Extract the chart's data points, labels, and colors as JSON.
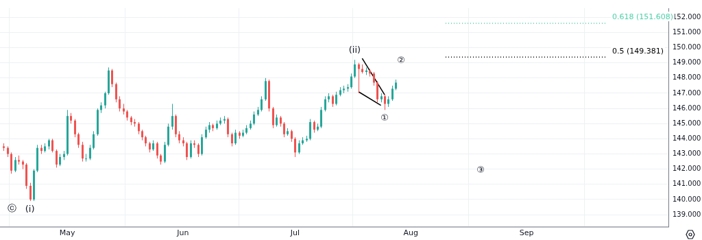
{
  "chart_data": {
    "type": "candlestick",
    "x": [
      "--04-14",
      "--04-15",
      "--04-16",
      "--04-17",
      "--04-18",
      "--04-19",
      "--04-20",
      "--04-21",
      "--04-22",
      "--04-23",
      "--04-24",
      "--04-25",
      "--04-26",
      "--04-27",
      "--04-28",
      "--04-29",
      "--04-30",
      "--05-01",
      "--05-02",
      "--05-03",
      "--05-04",
      "--05-05",
      "--05-06",
      "--05-07",
      "--05-08",
      "--05-09",
      "--05-10",
      "--05-11",
      "--05-12",
      "--05-13",
      "--05-14",
      "--05-15",
      "--05-16",
      "--05-17",
      "--05-18",
      "--05-19",
      "--05-20",
      "--05-21",
      "--05-22",
      "--05-23",
      "--05-24",
      "--05-25",
      "--05-26",
      "--05-27",
      "--05-28",
      "--05-29",
      "--05-30",
      "--05-31",
      "--06-01",
      "--06-02",
      "--06-03",
      "--06-04",
      "--06-05",
      "--06-06",
      "--06-07",
      "--06-08",
      "--06-09",
      "--06-10",
      "--06-11",
      "--06-12",
      "--06-13",
      "--06-14",
      "--06-15",
      "--06-16",
      "--06-17",
      "--06-18",
      "--06-19",
      "--06-20",
      "--06-21",
      "--06-22",
      "--06-23",
      "--06-24",
      "--06-25",
      "--06-26",
      "--06-27",
      "--06-28",
      "--06-29",
      "--06-30",
      "--07-01",
      "--07-02",
      "--07-03",
      "--07-04",
      "--07-05",
      "--07-06",
      "--07-07",
      "--07-08",
      "--07-09",
      "--07-10",
      "--07-11",
      "--07-12",
      "--07-13",
      "--07-14",
      "--07-15",
      "--07-16",
      "--07-17",
      "--07-18",
      "--07-19",
      "--07-20",
      "--07-21",
      "--07-22",
      "--07-23",
      "--07-24",
      "--07-25",
      "--07-26",
      "--07-27",
      "--07-28"
    ],
    "ohlc": [
      [
        143.5,
        143.7,
        143.2,
        143.4
      ],
      [
        143.4,
        143.5,
        142.8,
        143.0
      ],
      [
        143.0,
        143.1,
        141.7,
        141.9
      ],
      [
        141.9,
        142.8,
        141.8,
        142.6
      ],
      [
        142.6,
        142.9,
        142.3,
        142.5
      ],
      [
        142.5,
        142.6,
        142.0,
        142.3
      ],
      [
        142.3,
        142.4,
        140.7,
        140.9
      ],
      [
        140.9,
        141.1,
        139.9,
        140.0
      ],
      [
        140.0,
        142.0,
        139.9,
        141.9
      ],
      [
        141.9,
        143.6,
        141.8,
        143.4
      ],
      [
        143.4,
        143.6,
        143.0,
        143.2
      ],
      [
        143.2,
        143.7,
        143.1,
        143.5
      ],
      [
        143.5,
        144.0,
        143.3,
        143.9
      ],
      [
        143.9,
        144.0,
        143.1,
        143.2
      ],
      [
        143.2,
        143.3,
        142.1,
        142.3
      ],
      [
        142.3,
        143.0,
        142.2,
        142.8
      ],
      [
        142.8,
        143.2,
        142.6,
        143.0
      ],
      [
        143.0,
        145.9,
        142.9,
        145.5
      ],
      [
        145.5,
        145.7,
        145.0,
        145.2
      ],
      [
        145.2,
        145.3,
        144.1,
        144.3
      ],
      [
        144.3,
        144.4,
        143.4,
        143.6
      ],
      [
        143.6,
        143.8,
        142.5,
        142.7
      ],
      [
        142.7,
        143.0,
        142.5,
        142.7
      ],
      [
        142.7,
        143.6,
        142.6,
        143.4
      ],
      [
        143.4,
        144.5,
        143.3,
        144.3
      ],
      [
        144.3,
        146.0,
        144.2,
        145.9
      ],
      [
        145.9,
        146.4,
        145.7,
        146.2
      ],
      [
        146.2,
        147.1,
        146.0,
        147.0
      ],
      [
        147.0,
        148.7,
        146.9,
        148.5
      ],
      [
        148.5,
        148.6,
        147.4,
        147.6
      ],
      [
        147.6,
        147.7,
        146.4,
        146.6
      ],
      [
        146.6,
        146.8,
        145.8,
        146.0
      ],
      [
        146.0,
        146.3,
        145.6,
        145.8
      ],
      [
        145.8,
        145.9,
        145.2,
        145.4
      ],
      [
        145.4,
        145.5,
        144.9,
        145.1
      ],
      [
        145.1,
        145.3,
        144.8,
        145.0
      ],
      [
        145.0,
        145.1,
        144.3,
        144.5
      ],
      [
        144.5,
        144.6,
        143.9,
        144.1
      ],
      [
        144.1,
        144.2,
        143.5,
        143.7
      ],
      [
        143.7,
        143.8,
        143.1,
        143.3
      ],
      [
        143.3,
        143.9,
        143.2,
        143.7
      ],
      [
        143.7,
        143.8,
        142.7,
        142.9
      ],
      [
        142.9,
        143.0,
        142.3,
        142.5
      ],
      [
        142.5,
        143.8,
        142.4,
        143.6
      ],
      [
        143.6,
        145.0,
        143.5,
        144.8
      ],
      [
        144.8,
        146.3,
        144.6,
        145.5
      ],
      [
        145.5,
        145.6,
        144.1,
        144.3
      ],
      [
        144.3,
        144.5,
        143.7,
        143.9
      ],
      [
        143.9,
        144.1,
        143.5,
        143.7
      ],
      [
        143.7,
        143.8,
        142.6,
        142.8
      ],
      [
        142.8,
        143.9,
        142.7,
        143.7
      ],
      [
        143.7,
        143.9,
        143.4,
        143.6
      ],
      [
        143.6,
        143.7,
        142.8,
        143.0
      ],
      [
        143.0,
        144.3,
        142.9,
        144.1
      ],
      [
        144.1,
        144.8,
        144.0,
        144.6
      ],
      [
        144.6,
        145.1,
        144.4,
        144.9
      ],
      [
        144.9,
        145.0,
        144.5,
        144.7
      ],
      [
        144.7,
        145.2,
        144.6,
        145.0
      ],
      [
        145.0,
        145.4,
        144.9,
        145.2
      ],
      [
        145.2,
        145.5,
        145.0,
        145.3
      ],
      [
        145.3,
        145.4,
        144.1,
        144.3
      ],
      [
        144.3,
        144.4,
        143.5,
        143.7
      ],
      [
        143.7,
        144.6,
        143.6,
        144.4
      ],
      [
        144.4,
        144.5,
        144.0,
        144.2
      ],
      [
        144.2,
        144.6,
        144.1,
        144.4
      ],
      [
        144.4,
        144.9,
        144.3,
        144.7
      ],
      [
        144.7,
        145.2,
        144.6,
        145.0
      ],
      [
        145.0,
        145.8,
        144.9,
        145.6
      ],
      [
        145.6,
        146.1,
        145.5,
        145.9
      ],
      [
        145.9,
        146.8,
        145.8,
        146.6
      ],
      [
        146.6,
        148.0,
        146.5,
        147.8
      ],
      [
        147.8,
        147.9,
        145.8,
        146.0
      ],
      [
        146.0,
        146.1,
        144.7,
        144.9
      ],
      [
        144.9,
        145.6,
        144.8,
        145.4
      ],
      [
        145.4,
        145.5,
        144.8,
        145.0
      ],
      [
        145.0,
        145.1,
        144.1,
        144.3
      ],
      [
        144.3,
        144.7,
        144.2,
        144.5
      ],
      [
        144.5,
        144.6,
        143.8,
        144.0
      ],
      [
        144.0,
        144.1,
        142.8,
        143.1
      ],
      [
        143.1,
        143.9,
        143.0,
        143.7
      ],
      [
        143.7,
        144.1,
        143.6,
        143.9
      ],
      [
        143.9,
        144.2,
        143.8,
        144.0
      ],
      [
        144.0,
        145.3,
        143.9,
        145.1
      ],
      [
        145.1,
        145.2,
        144.4,
        144.6
      ],
      [
        144.6,
        145.0,
        144.5,
        144.8
      ],
      [
        144.8,
        146.1,
        144.7,
        145.9
      ],
      [
        145.9,
        146.8,
        145.8,
        146.6
      ],
      [
        146.6,
        147.0,
        146.4,
        146.8
      ],
      [
        146.8,
        146.9,
        146.1,
        146.3
      ],
      [
        146.3,
        147.1,
        146.2,
        146.9
      ],
      [
        146.9,
        147.4,
        146.8,
        147.2
      ],
      [
        147.2,
        147.5,
        147.0,
        147.3
      ],
      [
        147.3,
        147.6,
        147.1,
        147.4
      ],
      [
        147.4,
        148.3,
        147.3,
        148.1
      ],
      [
        148.1,
        149.2,
        148.0,
        148.9
      ],
      [
        148.9,
        149.0,
        147.0,
        148.6
      ],
      [
        148.6,
        148.9,
        148.3,
        148.4
      ],
      [
        148.4,
        148.7,
        148.2,
        148.5
      ],
      [
        148.5,
        148.6,
        148.1,
        148.3
      ],
      [
        148.3,
        148.4,
        147.5,
        147.7
      ],
      [
        147.7,
        147.8,
        146.4,
        146.6
      ],
      [
        146.6,
        147.0,
        146.4,
        146.8
      ],
      [
        146.8,
        146.9,
        145.9,
        146.3
      ],
      [
        146.3,
        146.8,
        146.1,
        146.6
      ],
      [
        146.6,
        147.5,
        146.5,
        147.3
      ],
      [
        147.3,
        147.9,
        147.2,
        147.7
      ]
    ],
    "series": [
      {
        "type": "line",
        "color": "#000000",
        "x": [
          "--07-19",
          "--07-25"
        ],
        "values": [
          149.3,
          146.9
        ]
      },
      {
        "type": "line",
        "color": "#000000",
        "x": [
          "--07-18",
          "--07-24"
        ],
        "values": [
          147.1,
          146.2
        ]
      }
    ],
    "xlim": [
      "--04-13",
      "--10-09"
    ],
    "xticks": [
      {
        "value": "--05-01",
        "label": "May"
      },
      {
        "value": "--06-01",
        "label": "Jun"
      },
      {
        "value": "--07-01",
        "label": "Jul"
      },
      {
        "value": "--08-01",
        "label": "Aug"
      },
      {
        "value": "--09-01",
        "label": "Sep"
      }
    ],
    "ylim": [
      138.2,
      152.6
    ],
    "yticks": [
      {
        "value": 139,
        "label": "139.000"
      },
      {
        "value": 140,
        "label": "140.000"
      },
      {
        "value": 141,
        "label": "141.000"
      },
      {
        "value": 142,
        "label": "142.000"
      },
      {
        "value": 143,
        "label": "143.000"
      },
      {
        "value": 144,
        "label": "144.000"
      },
      {
        "value": 145,
        "label": "145.000"
      },
      {
        "value": 146,
        "label": "146.000"
      },
      {
        "value": 147,
        "label": "147.000"
      },
      {
        "value": 148,
        "label": "148.000"
      },
      {
        "value": 149,
        "label": "149.000"
      },
      {
        "value": 150,
        "label": "150.000"
      },
      {
        "value": 151,
        "label": "151.000"
      },
      {
        "value": 152,
        "label": "152.000"
      }
    ],
    "ref_lines": [
      {
        "axis": "y",
        "value": 151.608,
        "label": "0.618 (151.608)",
        "color": "#4dd0a8",
        "line_style": "dotted"
      },
      {
        "axis": "y",
        "value": 149.381,
        "label": "0.5 (149.381)",
        "color": "#000000",
        "line_style": "dotted"
      }
    ],
    "annotations": [
      "ⓒ",
      {
        "text": "(i)",
        "x": "--04-21",
        "y": 139.9
      },
      {
        "text": "(ii)",
        "x": "--07-17",
        "y": 149.2
      },
      {
        "text": "①",
        "x": "--07-25",
        "y": 145.9
      },
      "②",
      "③"
    ],
    "grid": true,
    "legend": false
  }
}
